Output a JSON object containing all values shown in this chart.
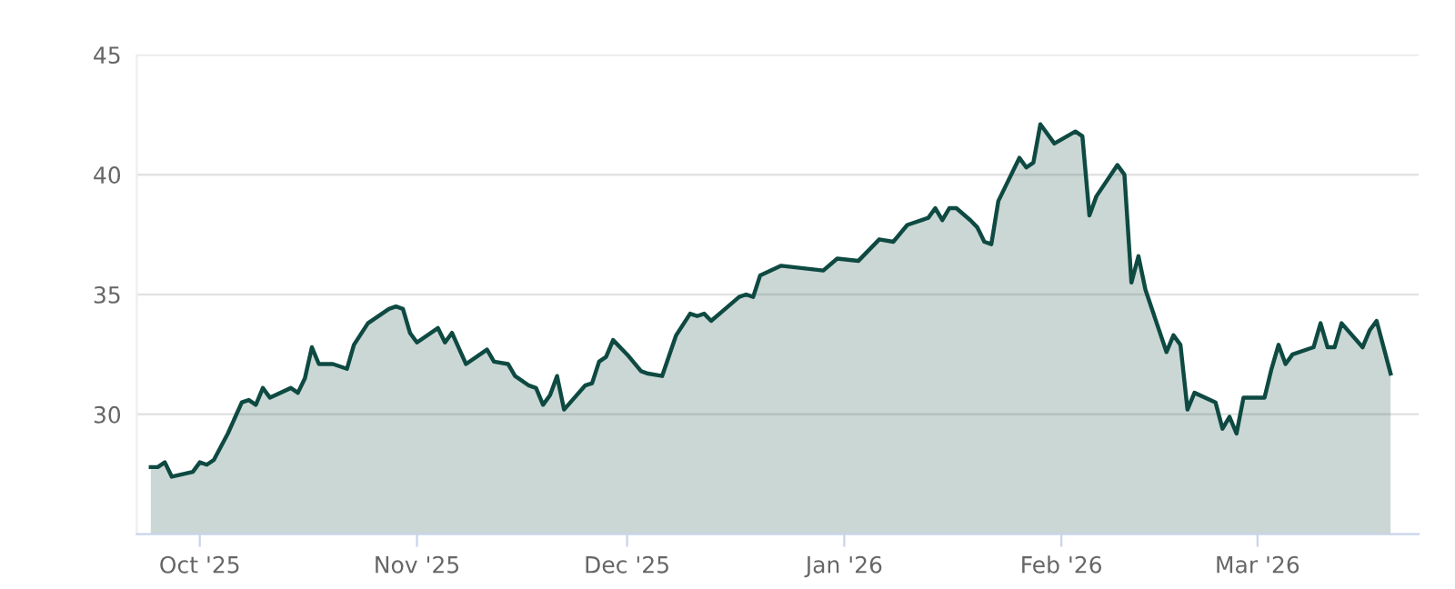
{
  "chart_data": {
    "type": "area",
    "x": [
      "2025-09-24",
      "2025-09-25",
      "2025-09-26",
      "2025-09-27",
      "2025-09-30",
      "2025-10-01",
      "2025-10-02",
      "2025-10-03",
      "2025-10-05",
      "2025-10-07",
      "2025-10-08",
      "2025-10-09",
      "2025-10-10",
      "2025-10-11",
      "2025-10-14",
      "2025-10-15",
      "2025-10-16",
      "2025-10-17",
      "2025-10-18",
      "2025-10-20",
      "2025-10-22",
      "2025-10-23",
      "2025-10-25",
      "2025-10-28",
      "2025-10-29",
      "2025-10-30",
      "2025-10-31",
      "2025-11-01",
      "2025-11-04",
      "2025-11-05",
      "2025-11-06",
      "2025-11-08",
      "2025-11-11",
      "2025-11-12",
      "2025-11-14",
      "2025-11-15",
      "2025-11-17",
      "2025-11-18",
      "2025-11-19",
      "2025-11-20",
      "2025-11-21",
      "2025-11-22",
      "2025-11-25",
      "2025-11-26",
      "2025-11-27",
      "2025-11-28",
      "2025-11-29",
      "2025-12-01",
      "2025-12-03",
      "2025-12-04",
      "2025-12-06",
      "2025-12-08",
      "2025-12-10",
      "2025-12-11",
      "2025-12-12",
      "2025-12-13",
      "2025-12-15",
      "2025-12-17",
      "2025-12-18",
      "2025-12-19",
      "2025-12-20",
      "2025-12-23",
      "2025-12-29",
      "2025-12-31",
      "2026-01-03",
      "2026-01-06",
      "2026-01-08",
      "2026-01-10",
      "2026-01-13",
      "2026-01-14",
      "2026-01-15",
      "2026-01-16",
      "2026-01-17",
      "2026-01-19",
      "2026-01-20",
      "2026-01-21",
      "2026-01-22",
      "2026-01-23",
      "2026-01-26",
      "2026-01-27",
      "2026-01-28",
      "2026-01-29",
      "2026-01-31",
      "2026-02-03",
      "2026-02-04",
      "2026-02-05",
      "2026-02-06",
      "2026-02-09",
      "2026-02-10",
      "2026-02-11",
      "2026-02-12",
      "2026-02-13",
      "2026-02-16",
      "2026-02-17",
      "2026-02-18",
      "2026-02-19",
      "2026-02-20",
      "2026-02-23",
      "2026-02-24",
      "2026-02-25",
      "2026-02-26",
      "2026-02-27",
      "2026-03-02",
      "2026-03-03",
      "2026-03-04",
      "2026-03-05",
      "2026-03-06",
      "2026-03-09",
      "2026-03-10",
      "2026-03-11",
      "2026-03-12",
      "2026-03-13",
      "2026-03-16",
      "2026-03-17",
      "2026-03-18",
      "2026-03-20"
    ],
    "series": [
      {
        "color": "#0e4a42",
        "values": [
          27.8,
          27.8,
          28.0,
          27.4,
          27.6,
          28.0,
          27.9,
          28.1,
          29.2,
          30.5,
          30.6,
          30.4,
          31.1,
          30.7,
          31.1,
          30.9,
          31.5,
          32.8,
          32.1,
          32.1,
          31.9,
          32.9,
          33.8,
          34.4,
          34.5,
          34.4,
          33.4,
          33.0,
          33.6,
          33.0,
          33.4,
          32.1,
          32.7,
          32.2,
          32.1,
          31.6,
          31.2,
          31.1,
          30.4,
          30.8,
          31.6,
          30.2,
          31.2,
          31.3,
          32.2,
          32.4,
          33.1,
          32.5,
          31.8,
          31.7,
          31.6,
          33.3,
          34.2,
          34.1,
          34.2,
          33.9,
          34.4,
          34.9,
          35.0,
          34.9,
          35.8,
          36.2,
          36.0,
          36.5,
          36.4,
          37.3,
          37.2,
          37.9,
          38.2,
          38.6,
          38.1,
          38.6,
          38.6,
          38.1,
          37.8,
          37.2,
          37.1,
          38.9,
          40.7,
          40.3,
          40.5,
          42.1,
          41.3,
          41.8,
          41.6,
          38.3,
          39.1,
          40.4,
          40.0,
          35.5,
          36.6,
          35.2,
          32.6,
          33.3,
          32.9,
          30.2,
          30.9,
          30.5,
          29.4,
          29.9,
          29.2,
          30.7,
          30.7,
          31.9,
          32.9,
          32.1,
          32.5,
          32.8,
          33.8,
          32.8,
          32.8,
          33.8,
          32.8,
          33.5,
          33.9,
          31.7
        ]
      }
    ],
    "xlim": [
      "2025-09-22",
      "2026-03-24"
    ],
    "xticks": [
      {
        "value": "2025-10-01",
        "label": "Oct '25"
      },
      {
        "value": "2025-11-01",
        "label": "Nov '25"
      },
      {
        "value": "2025-12-01",
        "label": "Dec '25"
      },
      {
        "value": "2026-01-01",
        "label": "Jan '26"
      },
      {
        "value": "2026-02-01",
        "label": "Feb '26"
      },
      {
        "value": "2026-03-01",
        "label": "Mar '26"
      }
    ],
    "ylim": [
      25,
      45
    ],
    "yticks": [
      30,
      35,
      40,
      45
    ],
    "grid": "y",
    "legend": false
  }
}
